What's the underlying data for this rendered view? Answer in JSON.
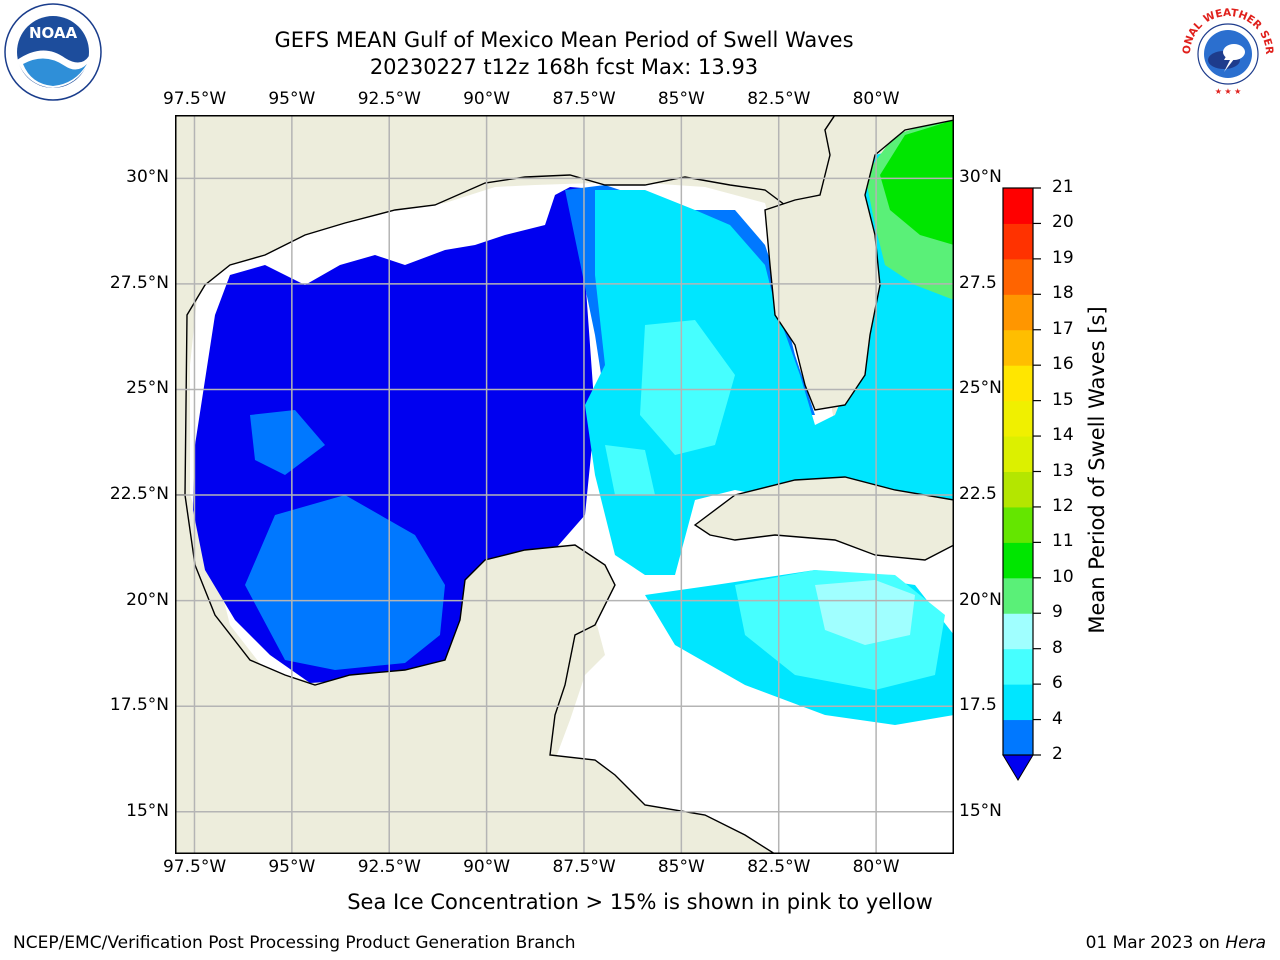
{
  "title": {
    "line1": "GEFS MEAN Gulf of Mexico Mean Period of Swell Waves",
    "line2": "20230227 t12z 168h fcst   Max: 13.93"
  },
  "logos": {
    "left": {
      "icon": "noaa-logo",
      "text": "NOAA"
    },
    "right": {
      "icon": "nws-logo",
      "text": "NATIONAL WEATHER SERVICE"
    }
  },
  "map": {
    "lon_labels": [
      "97.5°W",
      "95°W",
      "92.5°W",
      "90°W",
      "87.5°W",
      "85°W",
      "82.5°W",
      "80°W"
    ],
    "lat_labels_left": [
      "30°N",
      "27.5°N",
      "25°N",
      "22.5°N",
      "20°N",
      "17.5°N",
      "15°N"
    ],
    "lat_labels_right": [
      "30°N",
      "27.5",
      "25°N",
      "22.5",
      "20°N",
      "17.5",
      "15°N"
    ],
    "lon_range": [
      -98,
      -78
    ],
    "lat_range": [
      14,
      31.5
    ],
    "land_color": "#ededdc",
    "grid_color": "#b4b4b4"
  },
  "colorbar": {
    "title": "Mean Period of Swell Waves [s]",
    "ticks": [
      "2",
      "4",
      "6",
      "8",
      "9",
      "10",
      "11",
      "12",
      "13",
      "14",
      "15",
      "16",
      "17",
      "18",
      "19",
      "20",
      "21"
    ],
    "colors": [
      "#0000f0",
      "#0078ff",
      "#00e6ff",
      "#46ffff",
      "#a0ffff",
      "#5af078",
      "#00e600",
      "#64e600",
      "#b4e600",
      "#dcf000",
      "#f0f000",
      "#ffe600",
      "#ffbe00",
      "#ff9600",
      "#ff6400",
      "#ff3200",
      "#ff0000"
    ],
    "under_color": "#0000f0"
  },
  "note": "Sea Ice Concentration > 15% is shown in pink to yellow",
  "footer": {
    "left": "NCEP/EMC/Verification Post Processing Product Generation Branch",
    "right_prefix": "01 Mar 2023 on",
    "right_host": "Hera"
  }
}
